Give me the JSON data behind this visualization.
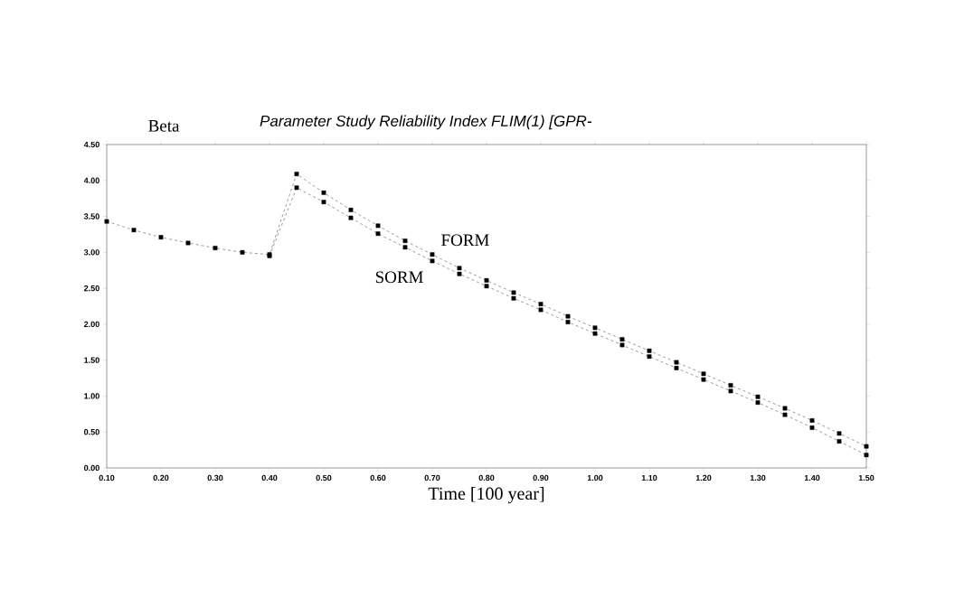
{
  "chart_data": {
    "type": "line",
    "title": "Parameter Study Reliability Index FLIM(1) [GPR-",
    "ylabel": "Beta",
    "xlabel": "Time [100 year]",
    "x": [
      0.1,
      0.15,
      0.2,
      0.25,
      0.3,
      0.35,
      0.4,
      0.45,
      0.5,
      0.55,
      0.6,
      0.65,
      0.7,
      0.75,
      0.8,
      0.85,
      0.9,
      0.95,
      1.0,
      1.05,
      1.1,
      1.15,
      1.2,
      1.25,
      1.3,
      1.35,
      1.4,
      1.45,
      1.5
    ],
    "series": [
      {
        "name": "FORM",
        "color": "#000000",
        "values": [
          3.43,
          3.31,
          3.21,
          3.13,
          3.06,
          3.0,
          2.97,
          4.09,
          3.83,
          3.59,
          3.37,
          3.16,
          2.97,
          2.78,
          2.61,
          2.44,
          2.28,
          2.11,
          1.95,
          1.79,
          1.63,
          1.47,
          1.31,
          1.15,
          0.99,
          0.83,
          0.66,
          0.48,
          0.3
        ]
      },
      {
        "name": "SORM",
        "color": "#000000",
        "values": [
          null,
          null,
          null,
          null,
          null,
          null,
          2.95,
          3.9,
          3.7,
          3.48,
          3.26,
          3.07,
          2.88,
          2.7,
          2.53,
          2.36,
          2.2,
          2.03,
          1.87,
          1.71,
          1.55,
          1.39,
          1.23,
          1.07,
          0.91,
          0.74,
          0.56,
          0.37,
          0.18
        ]
      }
    ],
    "xlim": [
      0.1,
      1.5
    ],
    "xticks": [
      {
        "value": 0.1,
        "label": "0.10"
      },
      {
        "value": 0.2,
        "label": "0.20"
      },
      {
        "value": 0.3,
        "label": "0.30"
      },
      {
        "value": 0.4,
        "label": "0.40"
      },
      {
        "value": 0.5,
        "label": "0.50"
      },
      {
        "value": 0.6,
        "label": "0.60"
      },
      {
        "value": 0.7,
        "label": "0.70"
      },
      {
        "value": 0.8,
        "label": "0.80"
      },
      {
        "value": 0.9,
        "label": "0.90"
      },
      {
        "value": 1.0,
        "label": "1.00"
      },
      {
        "value": 1.1,
        "label": "1.10"
      },
      {
        "value": 1.2,
        "label": "1.20"
      },
      {
        "value": 1.3,
        "label": "1.30"
      },
      {
        "value": 1.4,
        "label": "1.40"
      },
      {
        "value": 1.5,
        "label": "1.50"
      }
    ],
    "ylim": [
      0,
      4.5
    ],
    "yticks": [
      {
        "value": 0,
        "label": "0.00"
      },
      {
        "value": 0.5,
        "label": "0.50"
      },
      {
        "value": 1.0,
        "label": "1.00"
      },
      {
        "value": 1.5,
        "label": "1.50"
      },
      {
        "value": 2.0,
        "label": "2.00"
      },
      {
        "value": 2.5,
        "label": "2.50"
      },
      {
        "value": 3.0,
        "label": "3.00"
      },
      {
        "value": 3.5,
        "label": "3.50"
      },
      {
        "value": 4.0,
        "label": "4.00"
      },
      {
        "value": 4.5,
        "label": "4.50"
      }
    ],
    "marker": "square",
    "line_style": "dashed",
    "grid": false,
    "legend": false
  }
}
